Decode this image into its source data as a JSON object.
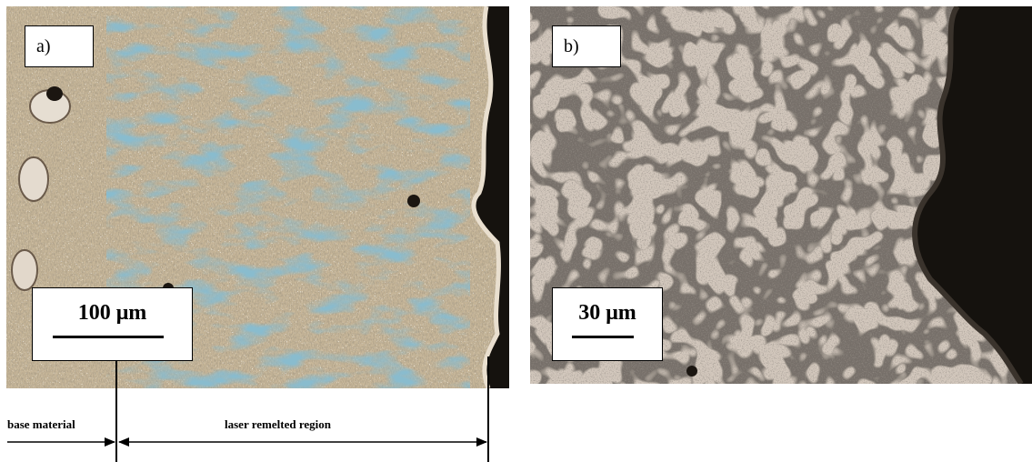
{
  "panel_a": {
    "label": "a)",
    "scale_label": "100 μm"
  },
  "panel_b": {
    "label": "b)",
    "scale_label": "30 μm"
  },
  "annotation": {
    "base_material": "base material",
    "laser_remelted_region": "laser remelted region"
  },
  "colors": {
    "panel_a_base": "#c9b89a",
    "panel_a_blue": "#3e7f9a",
    "panel_b_base": "#d3c8bd",
    "dark_edge": "#15120e"
  }
}
